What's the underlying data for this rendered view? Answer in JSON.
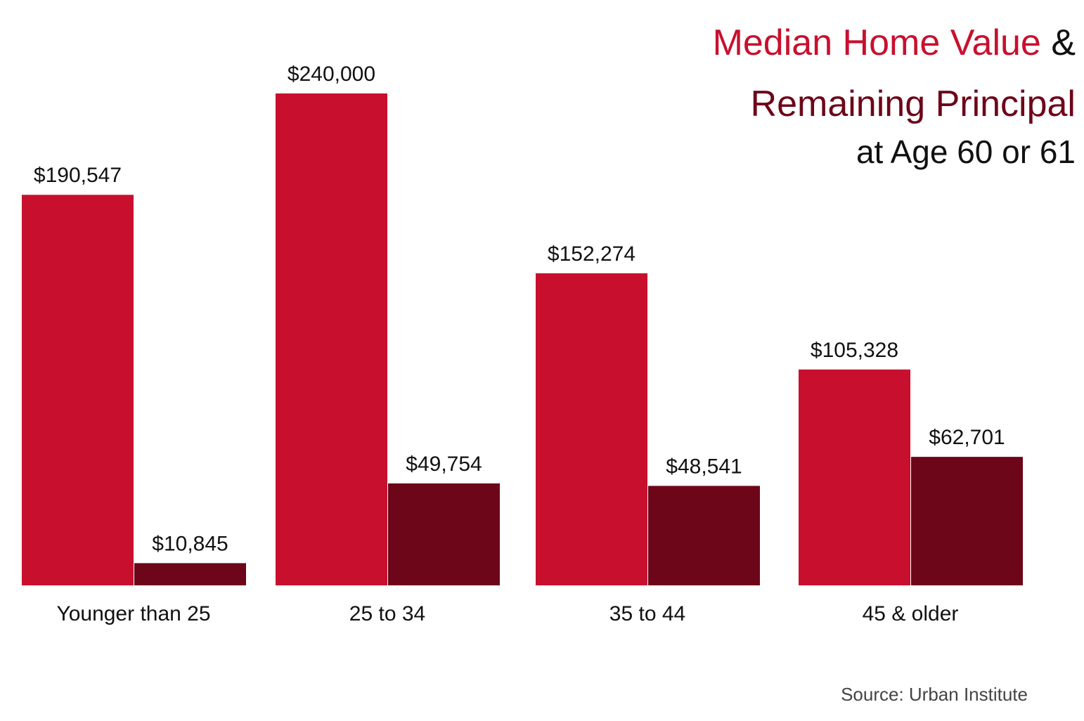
{
  "chart_data": {
    "type": "bar",
    "title_joiner": "&",
    "subtitle": "at Age 60 or 61",
    "source": "Source: Urban Institute",
    "categories": [
      "Younger than 25",
      "25 to 34",
      "35 to 44",
      "45 & older"
    ],
    "series": [
      {
        "name": "Median Home Value",
        "color": "#c8102e",
        "values": [
          190547,
          240000,
          152274,
          105328
        ],
        "value_labels": [
          "$190,547",
          "$240,000",
          "$152,274",
          "$105,328"
        ]
      },
      {
        "name": "Remaining Principal",
        "color": "#6d0619",
        "values": [
          10845,
          49754,
          48541,
          62701
        ],
        "value_labels": [
          "$10,845",
          "$49,754",
          "$48,541",
          "$62,701"
        ]
      }
    ]
  }
}
